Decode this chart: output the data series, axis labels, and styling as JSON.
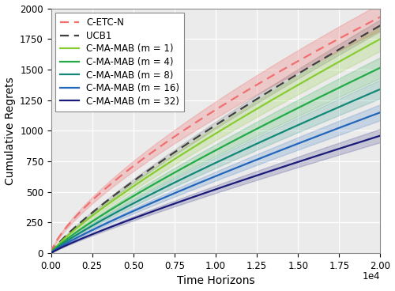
{
  "title": "",
  "xlabel": "Time Horizons",
  "ylabel": "Cumulative Regrets",
  "xlim": [
    0,
    20000
  ],
  "ylim": [
    0,
    2000
  ],
  "xticks": [
    0.0,
    0.25,
    0.5,
    0.75,
    1.0,
    1.25,
    1.5,
    1.75,
    2.0
  ],
  "yticks": [
    0,
    250,
    500,
    750,
    1000,
    1250,
    1500,
    1750,
    2000
  ],
  "T": 20000,
  "n_points": 300,
  "cetc_color": "#F07070",
  "cetc_alpha": 0.28,
  "ucb1_color": "#404040",
  "ucb1_alpha": 0.15,
  "ma_mab_colors": [
    "#88CC33",
    "#22AA44",
    "#118877",
    "#2266BB",
    "#1A1A7A"
  ],
  "ma_mab_alphas": [
    0.22,
    0.2,
    0.18,
    0.18,
    0.18
  ],
  "ma_mab_m_values": [
    1,
    4,
    8,
    16,
    32
  ],
  "ma_mab_final": [
    1750,
    1515,
    1340,
    1150,
    960
  ],
  "cetc_final": 1930,
  "ucb1_final": 1860,
  "legend_fontsize": 8.5,
  "axis_fontsize": 10,
  "tick_fontsize": 8.5,
  "background_color": "#ebebeb"
}
